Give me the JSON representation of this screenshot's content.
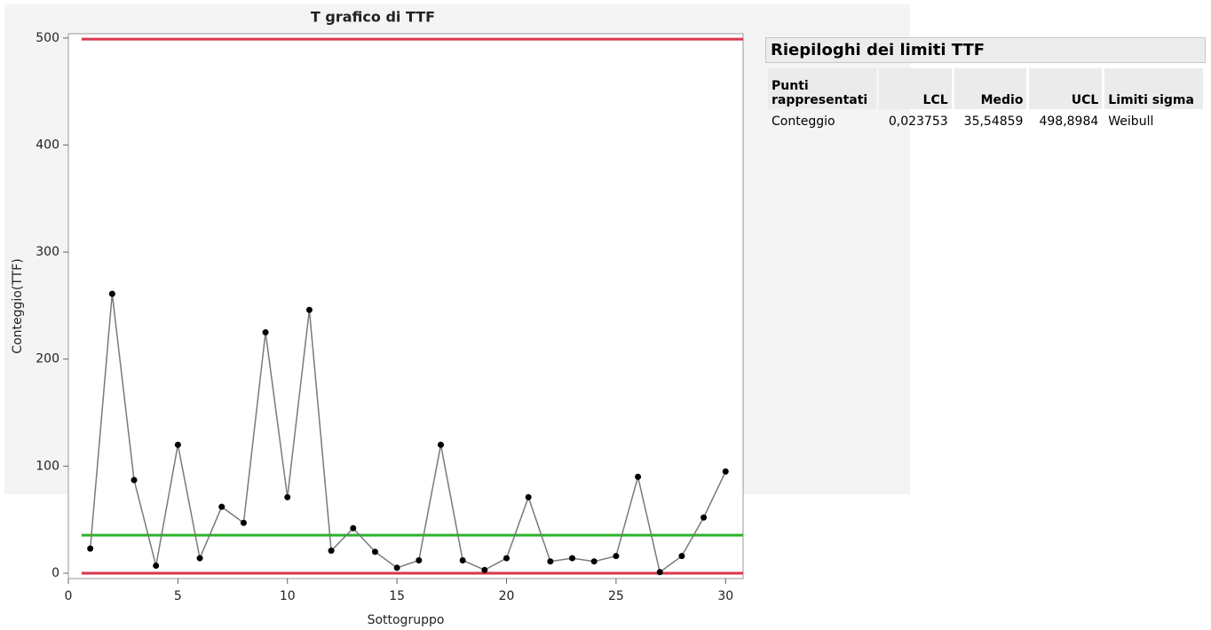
{
  "chart_data": {
    "type": "line",
    "title": "T grafico di TTF",
    "x_label": "Sottogruppo",
    "y_label": "Conteggio(TTF)",
    "x": [
      1,
      2,
      3,
      4,
      5,
      6,
      7,
      8,
      9,
      10,
      11,
      12,
      13,
      14,
      15,
      16,
      17,
      18,
      19,
      20,
      21,
      22,
      23,
      24,
      25,
      26,
      27,
      28,
      29,
      30
    ],
    "values": [
      23,
      261,
      87,
      7,
      120,
      14,
      62,
      47,
      225,
      71,
      246,
      21,
      42,
      20,
      5,
      12,
      120,
      12,
      3,
      14,
      71,
      11,
      14,
      11,
      16,
      90,
      1,
      16,
      52,
      95
    ],
    "color": "#7a7a7a",
    "marker_color": "#000000",
    "xlim": [
      0,
      30.8
    ],
    "ylim": [
      -5,
      504
    ],
    "xticks": [
      0,
      5,
      10,
      15,
      20,
      25,
      30
    ],
    "yticks": [
      0,
      100,
      200,
      300,
      400,
      500
    ],
    "limits": [
      {
        "value": 0.023753,
        "color": "#d9374d"
      },
      {
        "value": 35.54859,
        "color": "#2bb32b"
      },
      {
        "value": 498.8984,
        "color": "#d9374d"
      }
    ]
  },
  "summary": {
    "title": "Riepiloghi dei limiti TTF",
    "columns": [
      "Punti rappresentati",
      "LCL",
      "Medio",
      "UCL",
      "Limiti sigma"
    ],
    "rows": [
      [
        "Conteggio",
        "0,023753",
        "35,54859",
        "498,8984",
        "Weibull"
      ]
    ]
  }
}
